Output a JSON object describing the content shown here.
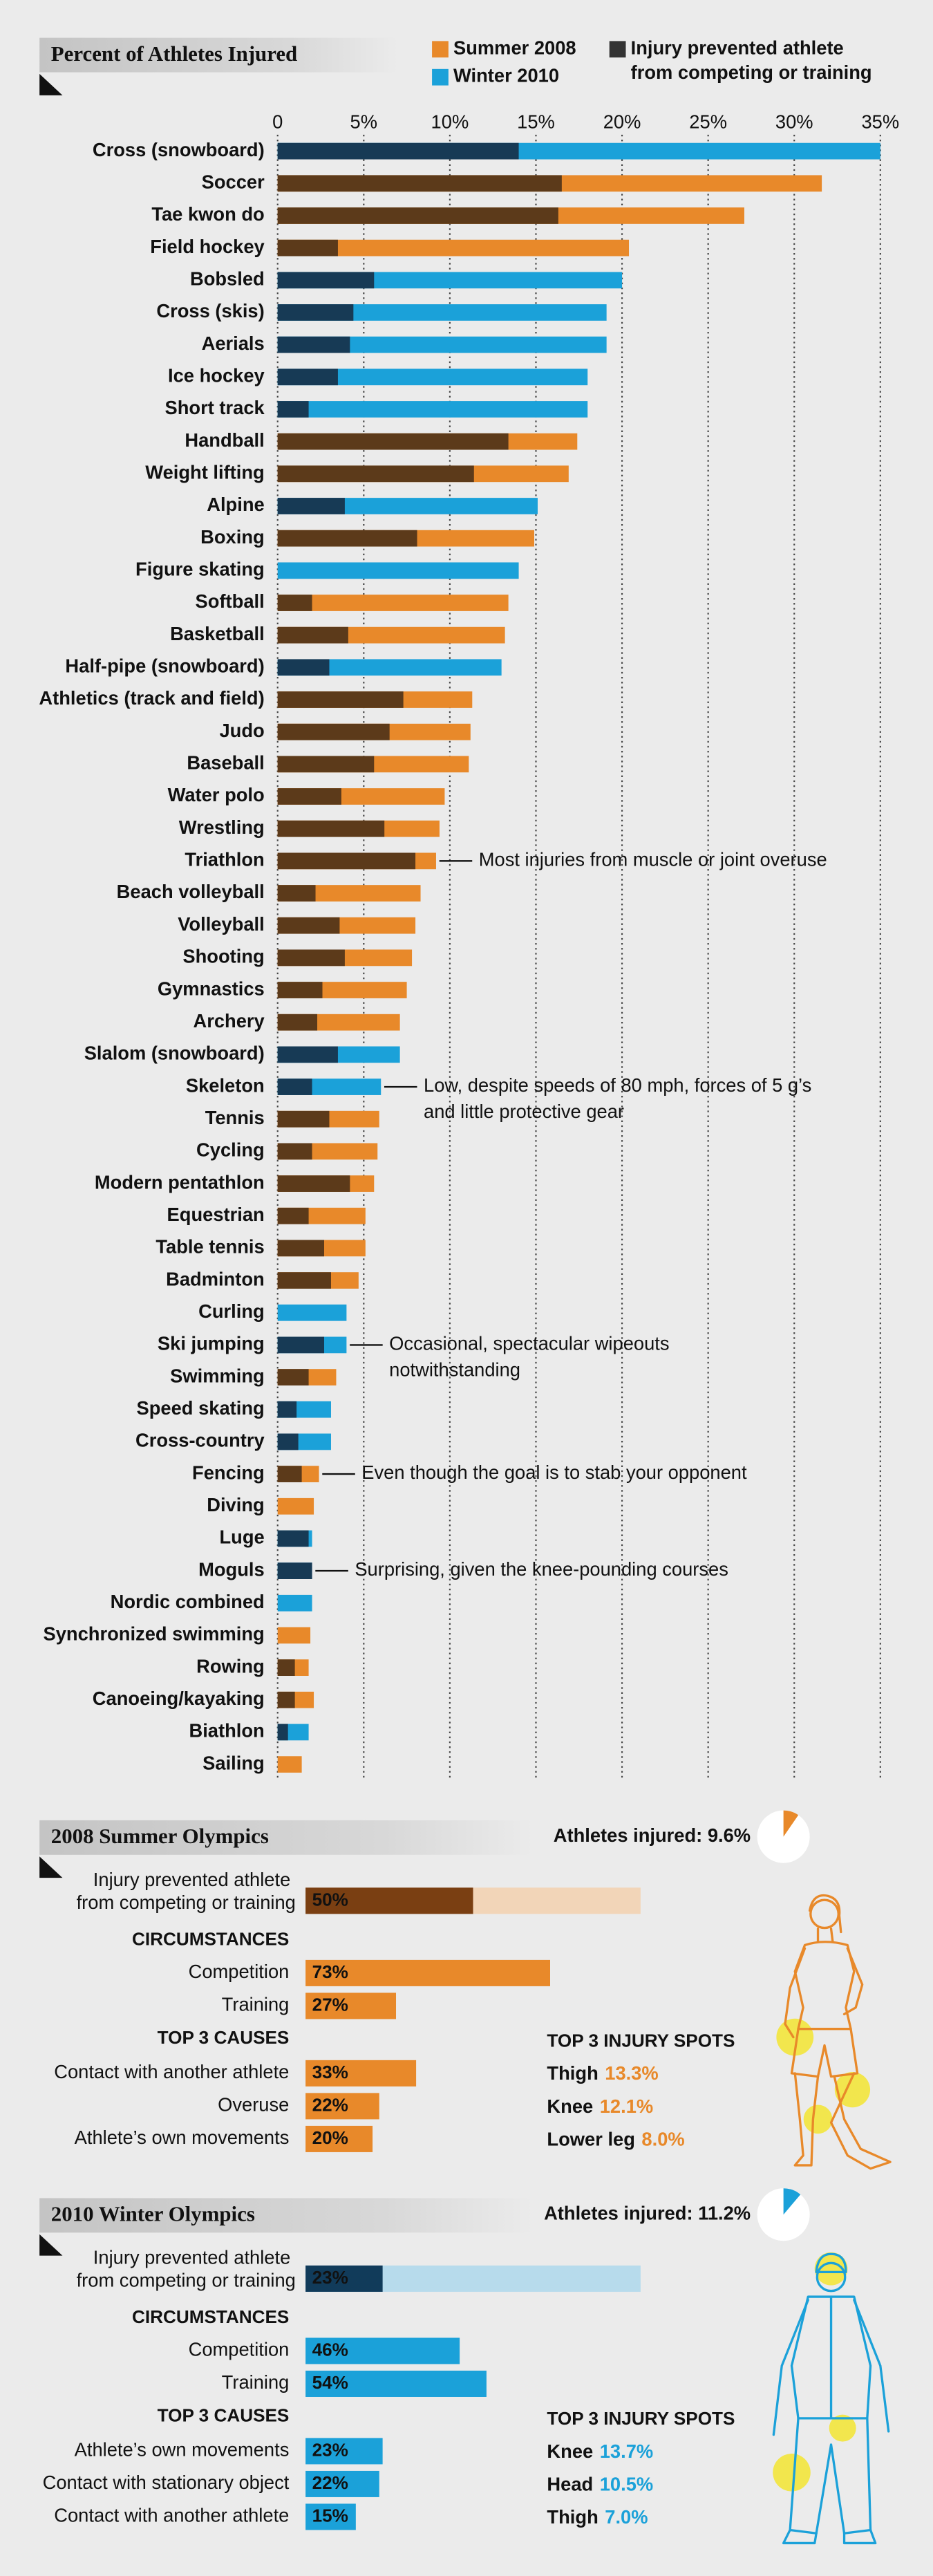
{
  "chart_data": {
    "type": "bar",
    "orientation": "horizontal",
    "title": "Percent of Athletes Injured",
    "categories": [
      "Cross (snowboard)",
      "Soccer",
      "Tae kwon do",
      "Field hockey",
      "Bobsled",
      "Cross (skis)",
      "Aerials",
      "Ice hockey",
      "Short track",
      "Handball",
      "Weight lifting",
      "Alpine",
      "Boxing",
      "Figure skating",
      "Softball",
      "Basketball",
      "Half-pipe (snowboard)",
      "Athletics (track and field)",
      "Judo",
      "Baseball",
      "Water polo",
      "Wrestling",
      "Triathlon",
      "Beach volleyball",
      "Volleyball",
      "Shooting",
      "Gymnastics",
      "Archery",
      "Slalom (snowboard)",
      "Skeleton",
      "Tennis",
      "Cycling",
      "Modern pentathlon",
      "Equestrian",
      "Table tennis",
      "Badminton",
      "Curling",
      "Ski jumping",
      "Swimming",
      "Speed skating",
      "Cross-country",
      "Fencing",
      "Diving",
      "Luge",
      "Moguls",
      "Nordic combined",
      "Synchronized swimming",
      "Rowing",
      "Canoeing/kayaking",
      "Biathlon",
      "Sailing"
    ],
    "series": [
      {
        "name": "Summer 2008",
        "color": "#e8892a",
        "values": [
          null,
          31.6,
          27.1,
          20.4,
          null,
          null,
          null,
          null,
          null,
          17.4,
          16.9,
          null,
          14.9,
          null,
          13.4,
          13.2,
          null,
          11.3,
          11.2,
          11.1,
          9.7,
          9.4,
          9.2,
          8.3,
          8.0,
          7.8,
          7.5,
          7.1,
          null,
          null,
          5.9,
          5.8,
          5.6,
          5.1,
          5.1,
          4.7,
          null,
          null,
          3.4,
          null,
          null,
          2.4,
          2.1,
          null,
          null,
          null,
          1.9,
          1.8,
          2.1,
          null,
          1.4
        ]
      },
      {
        "name": "Winter 2010",
        "color": "#1ba1d9",
        "values": [
          35,
          null,
          null,
          null,
          20.0,
          19.1,
          19.1,
          18.0,
          18.0,
          null,
          null,
          15.1,
          null,
          14.0,
          null,
          null,
          13.0,
          null,
          null,
          null,
          null,
          null,
          null,
          null,
          null,
          null,
          null,
          null,
          7.1,
          6.0,
          null,
          null,
          null,
          null,
          null,
          null,
          4.0,
          4.0,
          null,
          3.1,
          3.1,
          null,
          null,
          2.0,
          2.0,
          2.0,
          null,
          null,
          null,
          1.8,
          null
        ]
      },
      {
        "name": "Injury prevented athlete from competing or training",
        "color": "#333333",
        "values": [
          14.0,
          16.5,
          16.3,
          3.5,
          5.6,
          4.4,
          4.2,
          3.5,
          1.8,
          13.4,
          11.4,
          3.9,
          8.1,
          0,
          2.0,
          4.1,
          3.0,
          7.3,
          6.5,
          5.6,
          3.7,
          6.2,
          8.0,
          2.2,
          3.6,
          3.9,
          2.6,
          2.3,
          3.5,
          2.0,
          3.0,
          2.0,
          4.2,
          1.8,
          2.7,
          3.1,
          0,
          2.7,
          1.8,
          1.1,
          1.2,
          1.4,
          0,
          1.8,
          2.0,
          0,
          0,
          1.0,
          1.0,
          0.6,
          0
        ]
      }
    ],
    "prevented_colors": [
      "#5c3a1a",
      "#173a55"
    ],
    "notes": [
      null,
      null,
      null,
      null,
      null,
      null,
      null,
      null,
      null,
      null,
      null,
      null,
      null,
      null,
      null,
      null,
      null,
      null,
      null,
      null,
      null,
      null,
      "Most injuries from muscle or joint overuse",
      null,
      null,
      null,
      null,
      null,
      null,
      "Low, despite speeds of 80 mph, forces of 5 g’s and little protective gear",
      null,
      null,
      null,
      null,
      null,
      null,
      null,
      "Occasional, spectacular wipeouts notwithstanding",
      null,
      null,
      null,
      "Even though the goal is to stab your opponent",
      null,
      null,
      "Surprising, given the knee-pounding courses",
      null,
      null,
      null,
      null,
      null,
      null
    ],
    "xlim": [
      0,
      35
    ],
    "xticks": [
      0,
      {
        "value": 5,
        "label": "5%"
      },
      {
        "value": 10,
        "label": "10%"
      },
      {
        "value": 15,
        "label": "15%"
      },
      {
        "value": 20,
        "label": "20%"
      },
      {
        "value": 25,
        "label": "25%"
      },
      {
        "value": 30,
        "label": "30%"
      },
      {
        "value": 35,
        "label": "35%"
      }
    ],
    "grid": true
  },
  "panels": [
    {
      "title": "2008 Summer Olympics",
      "color": "#e8892a",
      "dark_color": "#7a3f12",
      "light_color": "#f2d5b8",
      "injured": {
        "value": 9.6,
        "label": "Athletes injured: 9.6%"
      },
      "prevented": {
        "label": "Injury prevented athlete from competing or training",
        "value": 50,
        "value_label": "50%"
      },
      "circumstances": {
        "title": "CIRCUMSTANCES",
        "rows": [
          {
            "label": "Competition",
            "value": 73,
            "value_label": "73%"
          },
          {
            "label": "Training",
            "value": 27,
            "value_label": "27%"
          }
        ]
      },
      "causes": {
        "title": "TOP 3 CAUSES",
        "rows": [
          {
            "label": "Contact with another athlete",
            "value": 33,
            "value_label": "33%"
          },
          {
            "label": "Overuse",
            "value": 22,
            "value_label": "22%"
          },
          {
            "label": "Athlete’s own movements",
            "value": 20,
            "value_label": "20%"
          }
        ]
      },
      "spots": {
        "title": "TOP 3 INJURY SPOTS",
        "rows": [
          {
            "name": "Thigh",
            "value": 13.3,
            "value_label": "13.3%"
          },
          {
            "name": "Knee",
            "value": 12.1,
            "value_label": "12.1%"
          },
          {
            "name": "Lower leg",
            "value": 8.0,
            "value_label": "8.0%"
          }
        ]
      }
    },
    {
      "title": "2010 Winter Olympics",
      "color": "#1ba1d9",
      "dark_color": "#113b5a",
      "light_color": "#b7dbec",
      "injured": {
        "value": 11.2,
        "label": "Athletes injured: 11.2%"
      },
      "prevented": {
        "label": "Injury prevented athlete from competing or training",
        "value": 23,
        "value_label": "23%"
      },
      "circumstances": {
        "title": "CIRCUMSTANCES",
        "rows": [
          {
            "label": "Competition",
            "value": 46,
            "value_label": "46%"
          },
          {
            "label": "Training",
            "value": 54,
            "value_label": "54%"
          }
        ]
      },
      "causes": {
        "title": "TOP 3 CAUSES",
        "rows": [
          {
            "label": "Athlete’s own movements",
            "value": 23,
            "value_label": "23%"
          },
          {
            "label": "Contact with stationary object",
            "value": 22,
            "value_label": "22%"
          },
          {
            "label": "Contact with another athlete",
            "value": 15,
            "value_label": "15%"
          }
        ]
      },
      "spots": {
        "title": "TOP 3 INJURY SPOTS",
        "rows": [
          {
            "name": "Knee",
            "value": 13.7,
            "value_label": "13.7%"
          },
          {
            "name": "Head",
            "value": 10.5,
            "value_label": "10.5%"
          },
          {
            "name": "Thigh",
            "value": 7.0,
            "value_label": "7.0%"
          }
        ]
      }
    }
  ]
}
